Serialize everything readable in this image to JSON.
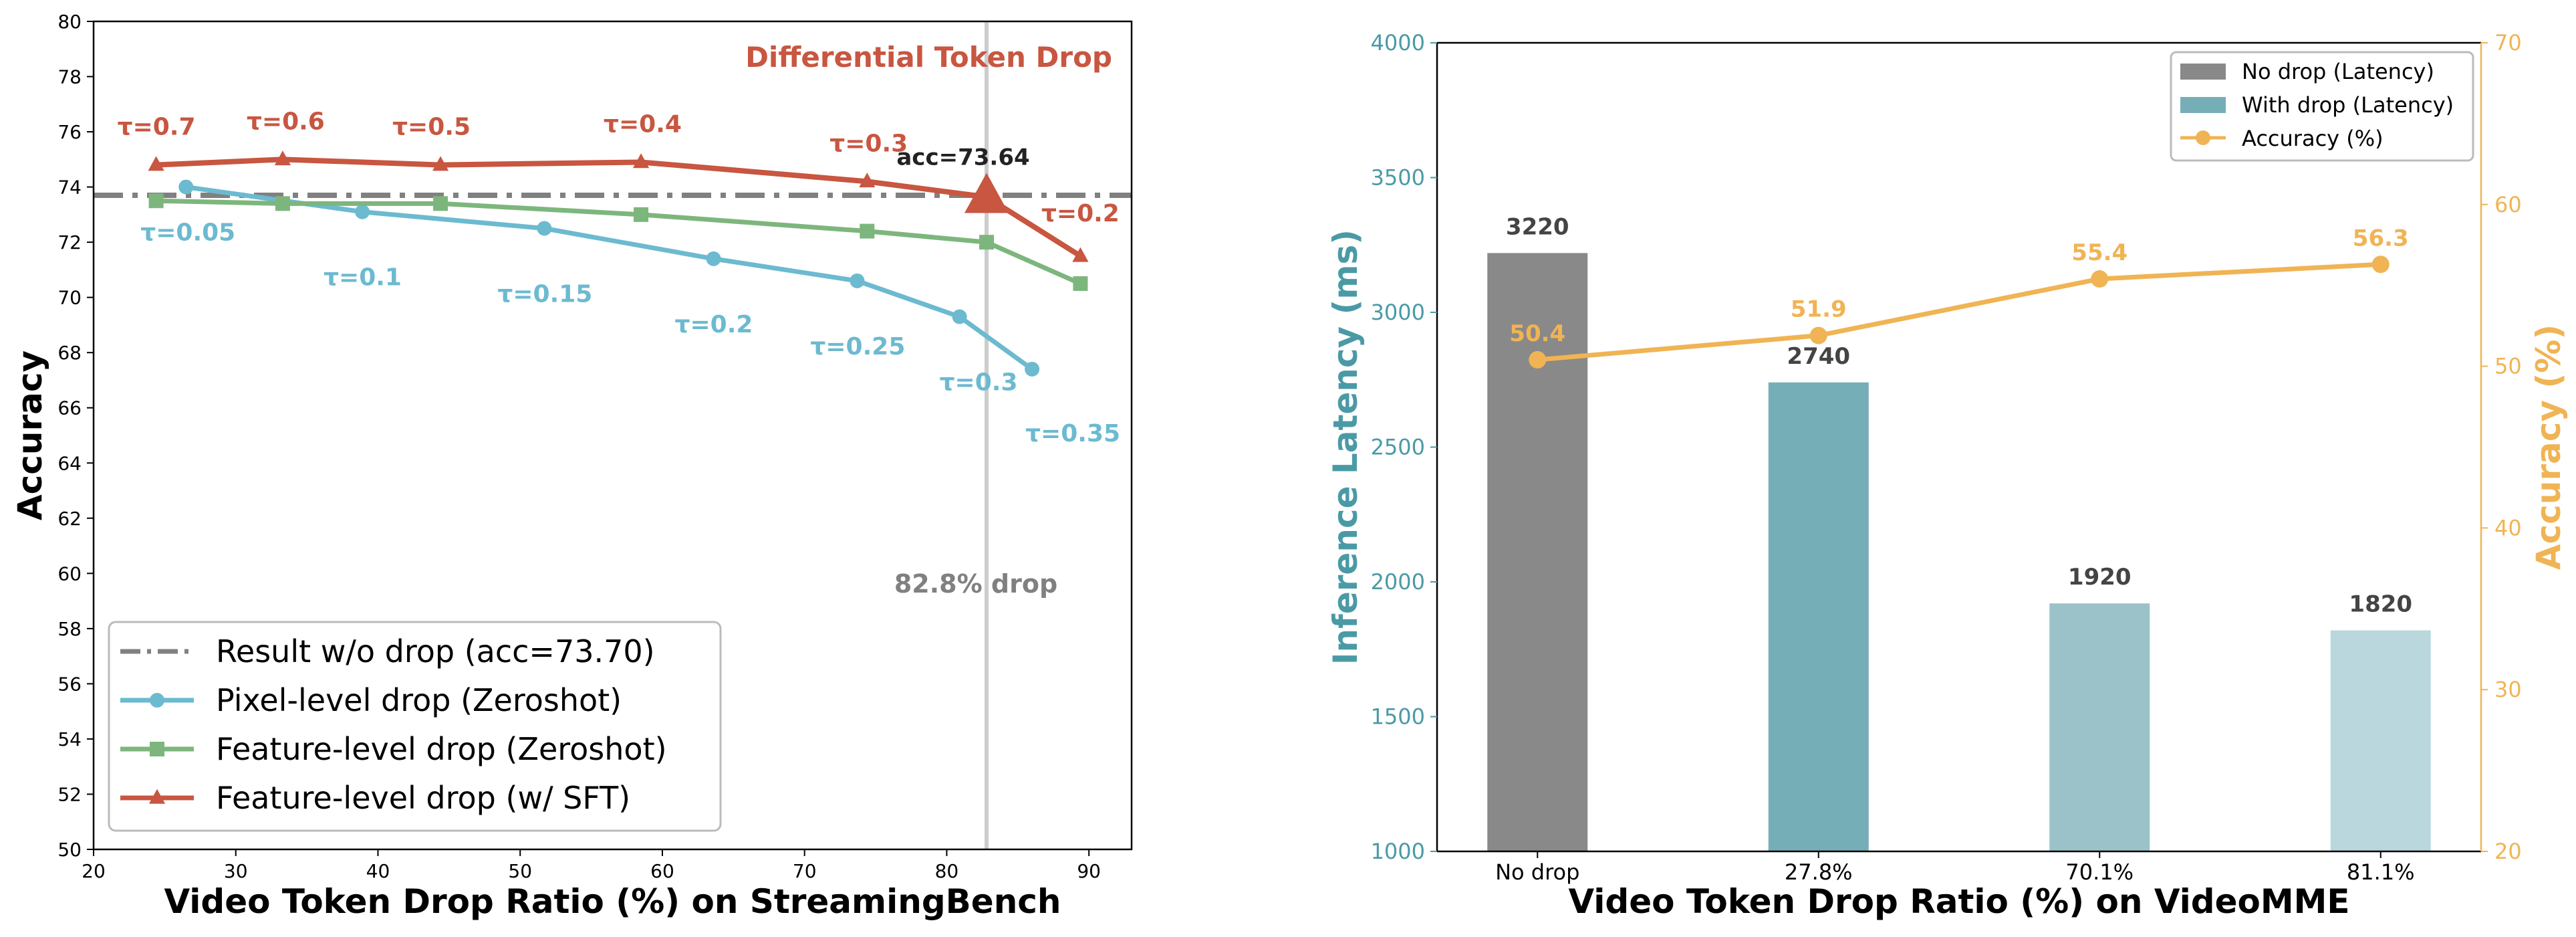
{
  "chart_data": [
    {
      "type": "line",
      "xlabel": "Video Token Drop Ratio (%) on StreamingBench",
      "ylabel": "Accuracy",
      "xlim": [
        20,
        93
      ],
      "ylim": [
        50,
        80
      ],
      "x_ticks": [
        20,
        30,
        40,
        50,
        60,
        70,
        80,
        90
      ],
      "y_ticks": [
        50,
        52,
        54,
        56,
        58,
        60,
        62,
        64,
        66,
        68,
        70,
        72,
        74,
        76,
        78,
        80
      ],
      "grid": false,
      "legend_position": "lower-left",
      "annotations": {
        "title_text": "Differential Token Drop",
        "acc_label": "acc=73.64",
        "drop_label": "82.8% drop",
        "drop_x": 82.8
      },
      "baseline": {
        "name": "Result w/o drop (acc=73.70)",
        "y": 73.7,
        "color": "#808080"
      },
      "series": [
        {
          "name": "Pixel-level drop (Zeroshot)",
          "color": "#6cbad0",
          "marker": "circle",
          "x": [
            26.5,
            38.9,
            51.7,
            63.6,
            73.7,
            80.9,
            86.0
          ],
          "y": [
            74.0,
            73.1,
            72.5,
            71.4,
            70.6,
            69.3,
            67.4
          ],
          "labels": [
            "τ=0.05",
            "τ=0.1",
            "τ=0.15",
            "τ=0.2",
            "τ=0.25",
            "τ=0.3",
            "τ=0.35"
          ]
        },
        {
          "name": "Feature-level drop (Zeroshot)",
          "color": "#7db67d",
          "marker": "square",
          "x": [
            24.4,
            33.3,
            44.4,
            58.5,
            74.4,
            82.8,
            89.4
          ],
          "y": [
            73.5,
            73.4,
            73.4,
            73.0,
            72.4,
            72.0,
            70.5
          ],
          "labels": []
        },
        {
          "name": "Feature-level drop (w/ SFT)",
          "color": "#c85640",
          "marker": "triangle",
          "x": [
            24.4,
            33.3,
            44.4,
            58.5,
            74.4,
            82.8,
            89.4
          ],
          "y": [
            74.8,
            75.0,
            74.8,
            74.9,
            74.2,
            73.64,
            71.5
          ],
          "labels": [
            "τ=0.7",
            "τ=0.6",
            "τ=0.5",
            "τ=0.4",
            "τ=0.3",
            "",
            "τ=0.2"
          ]
        }
      ]
    },
    {
      "type": "bar",
      "xlabel": "Video Token Drop Ratio (%) on VideoMME",
      "ylabel": "Inference Latency (ms)",
      "y2label": "Accuracy (%)",
      "categories": [
        "No drop",
        "27.8%",
        "70.1%",
        "81.1%"
      ],
      "ylim": [
        1000,
        4000
      ],
      "y2lim": [
        20,
        70
      ],
      "y_ticks": [
        1000,
        1500,
        2000,
        2500,
        3000,
        3500,
        4000
      ],
      "y2_ticks": [
        20,
        30,
        40,
        50,
        60,
        70
      ],
      "grid": false,
      "legend_position": "top-right",
      "bar_colors": [
        "#898989",
        "#76aeb7",
        "#9bc2c9",
        "#b9d7dc"
      ],
      "latency_values": [
        3220,
        2740,
        1920,
        1820
      ],
      "accuracy_values": [
        50.4,
        51.9,
        55.4,
        56.3
      ],
      "legend": [
        "No drop (Latency)",
        "With drop (Latency)",
        "Accuracy (%)"
      ],
      "axis_color_left": "#4a9aa6",
      "axis_color_right": "#f0b454",
      "accuracy_color": "#f0b454"
    }
  ]
}
